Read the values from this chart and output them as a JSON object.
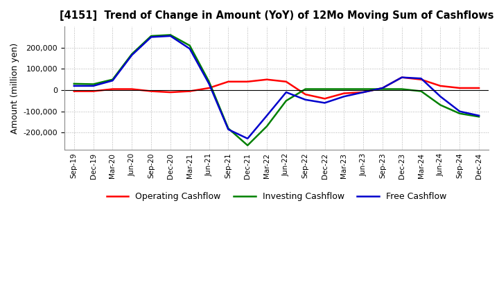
{
  "title": "[4151]  Trend of Change in Amount (YoY) of 12Mo Moving Sum of Cashflows",
  "ylabel": "Amount (million yen)",
  "ylim": [
    -280000,
    300000
  ],
  "yticks": [
    -200000,
    -100000,
    0,
    100000,
    200000
  ],
  "background_color": "#ffffff",
  "grid_color": "#b0b0b0",
  "x_labels": [
    "Sep-19",
    "Dec-19",
    "Mar-20",
    "Jun-20",
    "Sep-20",
    "Dec-20",
    "Mar-21",
    "Jun-21",
    "Sep-21",
    "Dec-21",
    "Mar-22",
    "Jun-22",
    "Sep-22",
    "Dec-22",
    "Mar-23",
    "Jun-23",
    "Sep-23",
    "Dec-23",
    "Mar-24",
    "Jun-24",
    "Sep-24",
    "Dec-24"
  ],
  "operating": [
    -5000,
    -5000,
    5000,
    5000,
    -5000,
    -10000,
    -5000,
    10000,
    40000,
    40000,
    50000,
    40000,
    -20000,
    -40000,
    -15000,
    -10000,
    10000,
    60000,
    50000,
    20000,
    10000,
    10000
  ],
  "investing": [
    30000,
    28000,
    50000,
    170000,
    255000,
    260000,
    210000,
    40000,
    -180000,
    -260000,
    -170000,
    -50000,
    5000,
    5000,
    5000,
    5000,
    5000,
    5000,
    -5000,
    -70000,
    -110000,
    -125000
  ],
  "free": [
    20000,
    20000,
    45000,
    165000,
    250000,
    255000,
    195000,
    30000,
    -185000,
    -228000,
    -120000,
    -10000,
    -45000,
    -60000,
    -30000,
    -10000,
    10000,
    60000,
    55000,
    -30000,
    -100000,
    -120000
  ],
  "op_color": "#ff0000",
  "inv_color": "#008000",
  "free_color": "#0000cc",
  "line_width": 1.8
}
